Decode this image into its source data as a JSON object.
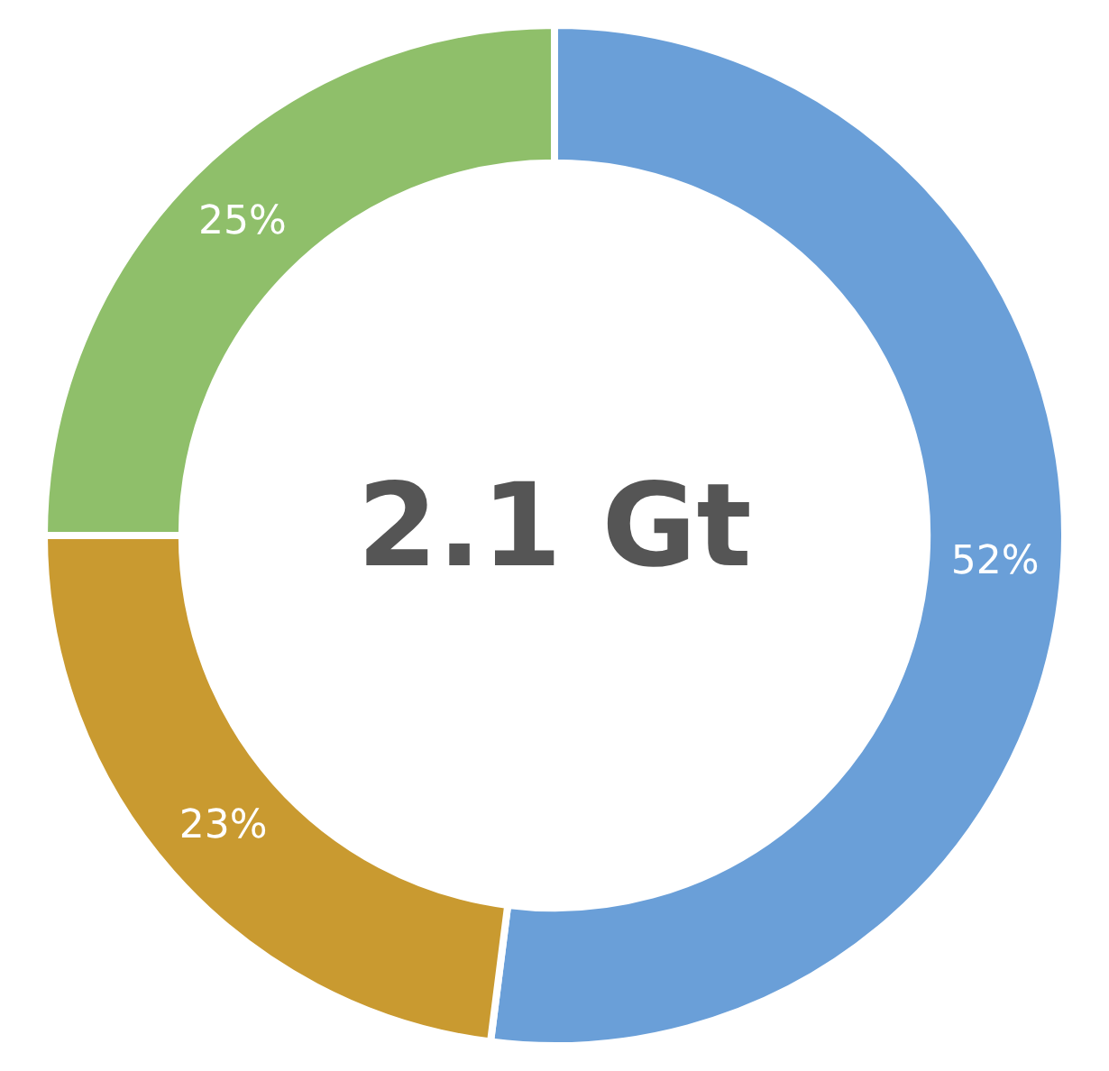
{
  "chart_data": {
    "type": "donut",
    "title": "2.1 Gt",
    "categories": [
      null,
      null,
      null
    ],
    "values": [
      52,
      23,
      25
    ],
    "colors": [
      "#6a9fd8",
      "#c99a30",
      "#8fbf6a"
    ],
    "value_labels": [
      "52%",
      "23%",
      "25%"
    ],
    "legend": false
  }
}
